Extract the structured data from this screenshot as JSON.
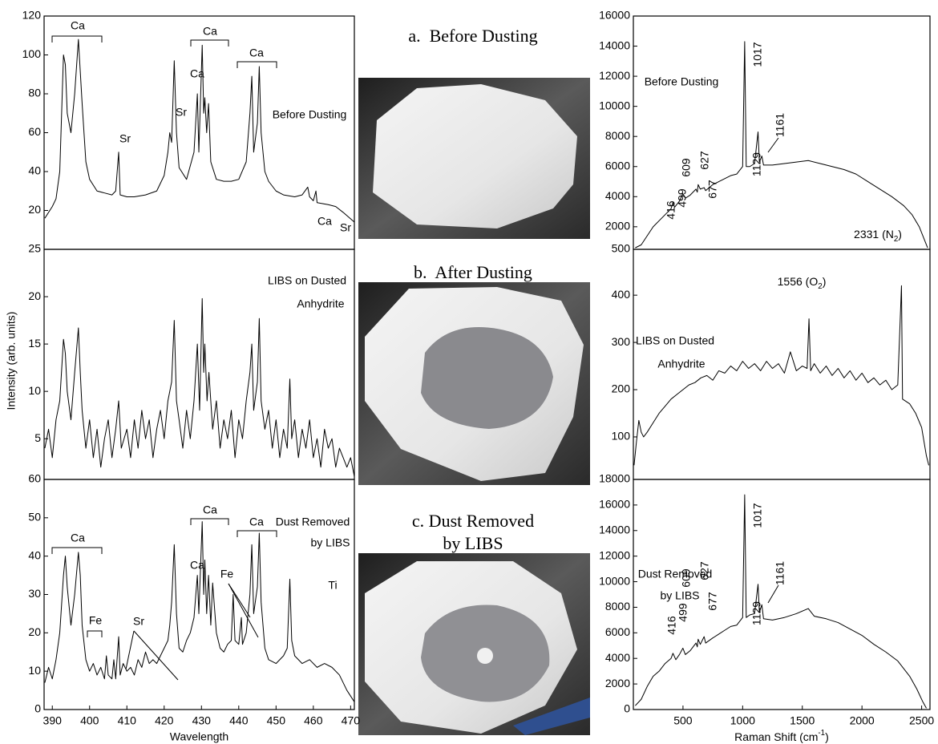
{
  "chart_data": [
    {
      "type": "line",
      "x": [
        388,
        390,
        391,
        392,
        393,
        393.5,
        394,
        395,
        396,
        397,
        398,
        399,
        400,
        402,
        404,
        406,
        407,
        407.8,
        408.2,
        410,
        412,
        415,
        418,
        420,
        421,
        421.5,
        422,
        422.7,
        423.3,
        424,
        426,
        428,
        428.9,
        429.3,
        430.2,
        430.6,
        430.9,
        431.4,
        431.9,
        432.5,
        434,
        436,
        438,
        440,
        442,
        443,
        443.5,
        444,
        445,
        445.5,
        446,
        447,
        448,
        450,
        452,
        455,
        457,
        458.5,
        459,
        460,
        460.7,
        461,
        464,
        466,
        468,
        471
      ],
      "values": [
        16,
        22,
        26,
        40,
        100,
        95,
        70,
        60,
        80,
        108,
        75,
        45,
        36,
        30,
        29,
        28,
        30,
        50,
        28,
        27,
        27,
        28,
        30,
        38,
        50,
        60,
        55,
        97,
        60,
        42,
        36,
        50,
        80,
        50,
        105,
        70,
        78,
        60,
        75,
        45,
        36,
        35,
        35,
        36,
        45,
        70,
        89,
        50,
        65,
        94,
        60,
        40,
        35,
        30,
        28,
        27,
        28,
        32,
        27,
        25,
        30,
        24,
        23,
        22,
        19,
        14
      ],
      "xlim": [
        387.8,
        471
      ],
      "ylim": [
        0,
        120
      ],
      "yticks": [
        20,
        40,
        60,
        80,
        100,
        120
      ],
      "annotations": [
        "Ca",
        "Ca",
        "Ca",
        "Ca",
        "Sr",
        "Sr",
        "Ca",
        "Sr",
        "Before Dusting"
      ]
    },
    {
      "type": "line",
      "x": [
        388,
        389,
        390,
        391,
        392,
        393,
        393.5,
        394,
        395,
        396,
        397,
        397.5,
        398,
        399,
        400,
        401,
        402,
        403,
        404,
        405,
        406,
        407,
        407.8,
        408.5,
        410,
        411,
        412,
        413,
        414,
        415,
        416,
        417,
        418,
        419,
        420,
        421,
        422,
        422.7,
        423.3,
        424,
        425,
        426,
        427,
        428,
        428.9,
        429.5,
        430.2,
        430.6,
        430.9,
        431.5,
        432,
        433,
        434,
        435,
        436,
        437,
        438,
        439,
        440,
        441,
        442,
        443,
        443.5,
        444,
        445,
        445.5,
        446,
        447,
        448,
        449,
        450,
        451,
        452,
        453,
        453.7,
        454.2,
        455,
        456,
        457,
        458,
        459,
        460,
        461,
        462,
        463,
        464,
        465,
        466,
        467,
        468,
        469,
        470,
        471
      ],
      "values": [
        4,
        6,
        3,
        7,
        9,
        15.5,
        14,
        10,
        7,
        12,
        16.7,
        12,
        8,
        4,
        7,
        3,
        6,
        2,
        5,
        7,
        3,
        6,
        9,
        4,
        6,
        3,
        7,
        4,
        8,
        5,
        7,
        3,
        6,
        8,
        5,
        9,
        11,
        17.5,
        9,
        7,
        4,
        8,
        5,
        9,
        15,
        8,
        19.8,
        12,
        15,
        9,
        12,
        6,
        9,
        4,
        7,
        5,
        8,
        3,
        7,
        5,
        9,
        12,
        15,
        8,
        11,
        17.7,
        9,
        6,
        8,
        4,
        7,
        3,
        6,
        4,
        11.3,
        5,
        7,
        3,
        6,
        4,
        7,
        3,
        5,
        2,
        6,
        4,
        5,
        2,
        4,
        3,
        2,
        3,
        1
      ],
      "xlim": [
        387.8,
        471
      ],
      "ylim": [
        0.7,
        25
      ],
      "yticks": [
        5,
        10,
        15,
        20,
        25
      ],
      "ylabel": "Intensity (arb. units)",
      "annotations": [
        "LIBS on Dusted",
        "Anhydrite"
      ]
    },
    {
      "type": "line",
      "x": [
        388,
        389,
        390,
        391,
        392,
        393,
        393.5,
        394,
        395,
        396,
        397,
        397.5,
        398,
        399,
        400,
        401,
        402,
        403,
        404,
        404.5,
        405,
        406,
        406.5,
        407,
        407.8,
        408.2,
        409,
        410,
        411,
        412,
        413,
        414,
        415,
        416,
        417,
        418,
        419,
        420,
        421,
        421.5,
        422,
        422.7,
        423.3,
        424,
        425,
        426,
        427,
        428,
        428.9,
        429.3,
        430.2,
        430.6,
        430.9,
        431.4,
        431.9,
        432.5,
        433,
        434,
        435,
        436,
        437,
        438,
        438.5,
        439,
        440,
        440.7,
        441,
        442,
        443,
        443.5,
        444,
        445,
        445.5,
        446,
        447,
        448,
        450,
        452,
        453,
        453.7,
        454.2,
        455,
        457,
        459,
        461,
        463,
        465,
        467,
        469,
        471
      ],
      "values": [
        7,
        11,
        8,
        13,
        20,
        35,
        40,
        32,
        22,
        30,
        41,
        35,
        22,
        13,
        10,
        12,
        9,
        11,
        8,
        14,
        9,
        8,
        13,
        8,
        19,
        9,
        12,
        10,
        11,
        9,
        13,
        11,
        15,
        12,
        13,
        12,
        14,
        16,
        18,
        22,
        28,
        43,
        25,
        16,
        15,
        18,
        20,
        24,
        35,
        25,
        49,
        30,
        39,
        25,
        35,
        22,
        33,
        20,
        16,
        15,
        17,
        18,
        30,
        18,
        17,
        24,
        17,
        20,
        30,
        43,
        25,
        32,
        46,
        28,
        16,
        13,
        12,
        14,
        16,
        34,
        18,
        14,
        12,
        13,
        11,
        12,
        11,
        9,
        5,
        2
      ],
      "xlim": [
        387.8,
        471
      ],
      "ylim": [
        0,
        60
      ],
      "yticks": [
        0,
        10,
        20,
        30,
        40,
        50,
        60
      ],
      "xticks": [
        390,
        400,
        410,
        420,
        430,
        440,
        450,
        460,
        470
      ],
      "xlabel": "Wavelength",
      "annotations": [
        "Ca",
        "Ca",
        "Ca",
        "Ca",
        "Fe",
        "Sr",
        "Fe",
        "Ti",
        "Dust Removed",
        "by LIBS"
      ]
    },
    {
      "type": "line",
      "x": [
        100,
        150,
        200,
        250,
        300,
        350,
        400,
        416,
        430,
        470,
        499,
        520,
        560,
        609,
        620,
        627,
        645,
        677,
        690,
        750,
        800,
        850,
        900,
        950,
        1000,
        1017,
        1030,
        1060,
        1100,
        1129,
        1140,
        1161,
        1175,
        1250,
        1350,
        1450,
        1550,
        1650,
        1750,
        1850,
        1950,
        2050,
        2150,
        2250,
        2350,
        2420,
        2480,
        2520,
        2550
      ],
      "values": [
        600,
        800,
        1400,
        2000,
        2400,
        2800,
        3200,
        3600,
        3300,
        3700,
        4200,
        3900,
        4100,
        4500,
        4300,
        4800,
        4500,
        4600,
        4400,
        4800,
        5000,
        5200,
        5400,
        5500,
        6000,
        14300,
        6000,
        6000,
        6200,
        8300,
        6300,
        6700,
        6100,
        6100,
        6200,
        6300,
        6400,
        6200,
        6000,
        5800,
        5500,
        5000,
        4500,
        4000,
        3400,
        2800,
        2000,
        1200,
        600
      ],
      "xlim": [
        84,
        2570
      ],
      "ylim": [
        500,
        16000
      ],
      "yticks": [
        500,
        2000,
        4000,
        6000,
        8000,
        10000,
        12000,
        14000,
        16000
      ],
      "peaks": [
        416,
        499,
        609,
        627,
        677,
        1017,
        1129,
        1161
      ],
      "annotations": [
        "Before Dusting"
      ]
    },
    {
      "type": "line",
      "x": [
        90,
        110,
        130,
        150,
        170,
        200,
        250,
        300,
        350,
        400,
        450,
        500,
        550,
        600,
        650,
        700,
        750,
        800,
        850,
        900,
        950,
        1000,
        1050,
        1100,
        1150,
        1200,
        1250,
        1300,
        1350,
        1400,
        1450,
        1500,
        1540,
        1556,
        1570,
        1600,
        1650,
        1700,
        1750,
        1800,
        1850,
        1900,
        1950,
        2000,
        2050,
        2100,
        2150,
        2200,
        2250,
        2300,
        2331,
        2340,
        2400,
        2450,
        2500,
        2540,
        2560
      ],
      "values": [
        40,
        90,
        135,
        110,
        100,
        110,
        130,
        150,
        165,
        180,
        190,
        200,
        210,
        215,
        225,
        230,
        220,
        240,
        235,
        250,
        240,
        260,
        245,
        255,
        240,
        260,
        245,
        255,
        235,
        280,
        240,
        250,
        245,
        350,
        240,
        255,
        235,
        250,
        230,
        245,
        225,
        240,
        220,
        235,
        215,
        225,
        210,
        220,
        200,
        210,
        420,
        180,
        170,
        150,
        120,
        60,
        40
      ],
      "xlim": [
        84,
        2570
      ],
      "ylim": [
        10,
        497
      ],
      "yticks": [
        100,
        200,
        300,
        400
      ],
      "annotations": [
        [
          "1556 (O",
          "2",
          ")"
        ],
        [
          "2331 (N",
          "2",
          ")"
        ],
        "LIBS on Dusted",
        "Anhydrite"
      ]
    },
    {
      "type": "line",
      "x": [
        100,
        150,
        200,
        250,
        300,
        350,
        400,
        416,
        440,
        470,
        499,
        520,
        560,
        609,
        620,
        627,
        645,
        677,
        690,
        750,
        800,
        850,
        900,
        950,
        1000,
        1017,
        1030,
        1060,
        1100,
        1129,
        1140,
        1161,
        1175,
        1250,
        1350,
        1450,
        1550,
        1600,
        1700,
        1800,
        1900,
        2000,
        2100,
        2200,
        2300,
        2400,
        2460,
        2510,
        2540
      ],
      "values": [
        300,
        800,
        1800,
        2600,
        3000,
        3600,
        4000,
        4400,
        3900,
        4300,
        4800,
        4300,
        4600,
        5200,
        4900,
        5500,
        5100,
        5700,
        5200,
        5600,
        5900,
        6200,
        6500,
        6600,
        7200,
        16800,
        7200,
        7400,
        7500,
        9800,
        7600,
        8200,
        7100,
        7000,
        7200,
        7500,
        7900,
        7300,
        7100,
        6800,
        6300,
        5800,
        5100,
        4500,
        3800,
        2600,
        1600,
        600,
        100
      ],
      "xlim": [
        84,
        2570
      ],
      "ylim": [
        0,
        18000
      ],
      "yticks": [
        0,
        2000,
        4000,
        6000,
        8000,
        10000,
        12000,
        14000,
        16000,
        18000
      ],
      "xticks": [
        500,
        1000,
        1500,
        2000,
        2500
      ],
      "xlabel": [
        "Raman Shift (cm",
        "-1",
        ")"
      ],
      "peaks": [
        416,
        499,
        609,
        627,
        677,
        1017,
        1129,
        1161
      ],
      "annotations": [
        "Dust Removed",
        "by LIBS"
      ]
    }
  ],
  "captions": [
    "a.  Before Dusting",
    "b.  After Dusting",
    "c. Dust Removed",
    "by LIBS"
  ]
}
